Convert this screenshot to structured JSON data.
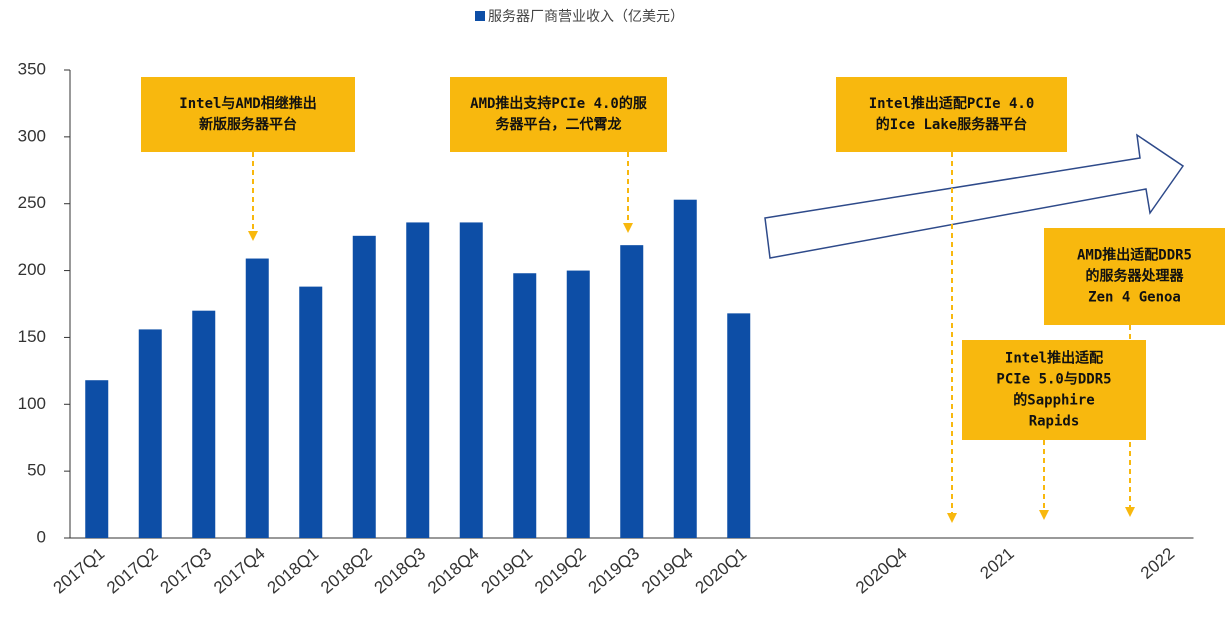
{
  "chart_data": {
    "type": "bar",
    "categories": [
      "2017Q1",
      "2017Q2",
      "2017Q3",
      "2017Q4",
      "2018Q1",
      "2018Q2",
      "2018Q3",
      "2018Q4",
      "2019Q1",
      "2019Q2",
      "2019Q3",
      "2019Q4",
      "2020Q1",
      null,
      null,
      "2020Q4",
      null,
      "2021",
      null,
      null,
      "2022"
    ],
    "series": [
      {
        "name": "服务器厂商营业收入（亿美元）",
        "color": "#0d4ea6",
        "values": [
          118,
          156,
          170,
          209,
          188,
          226,
          236,
          236,
          198,
          200,
          219,
          253,
          168,
          null,
          null,
          null,
          null,
          null,
          null,
          null,
          null
        ]
      }
    ],
    "ylim": [
      0,
      350
    ],
    "yticks": [
      0,
      50,
      100,
      150,
      200,
      250,
      300,
      350
    ],
    "annotations": [
      {
        "lines": [
          "Intel与AMD相继推出",
          "新版服务器平台"
        ]
      },
      {
        "lines": [
          "AMD推出支持PCIe 4.0的服",
          "务器平台，二代霄龙"
        ]
      },
      {
        "lines": [
          "Intel推出适配PCIe 4.0",
          "的Ice Lake服务器平台"
        ]
      },
      {
        "lines": [
          "AMD推出适配DDR5",
          "的服务器处理器",
          "Zen 4 Genoa"
        ]
      },
      {
        "lines": [
          "Intel推出适配",
          "PCIe 5.0与DDR5",
          "的Sapphire",
          "Rapids"
        ]
      }
    ],
    "annotation_color": "#f8b80e"
  }
}
